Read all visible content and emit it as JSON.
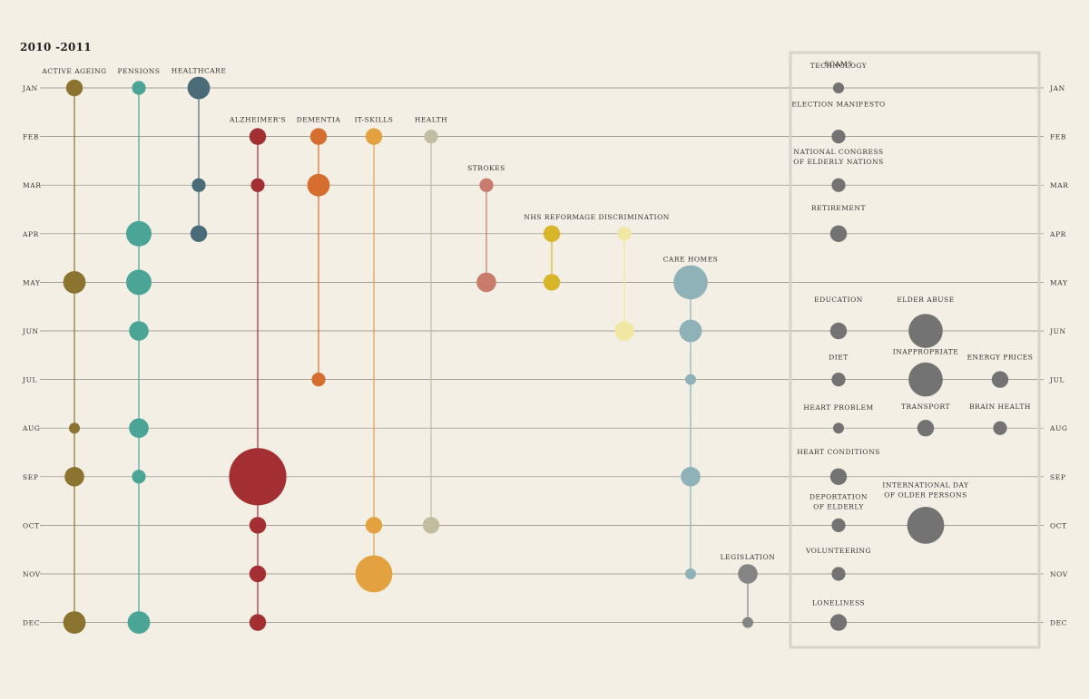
{
  "header": {
    "period": "2010 -2011"
  },
  "colors": {
    "background": "#f3efe4",
    "gridline": "#8a877f",
    "box": "#d6d3ca",
    "active_ageing": "#8b7430",
    "pensions": "#4aa597",
    "healthcare": "#4a6b78",
    "alzheimers": "#a32f33",
    "dementia": "#d56e2f",
    "it_skills": "#e3a23f",
    "health": "#c0bda1",
    "strokes": "#c97b6c",
    "nhs_reform": "#d7b62a",
    "age_discrimination": "#f0e7a2",
    "care_homes": "#8fb1b8",
    "legislation": "#858585",
    "other_topics": "#737373"
  },
  "chart_data": {
    "type": "scatter",
    "title": "2010 -2011",
    "months": [
      "JAN",
      "FEB",
      "MAR",
      "APR",
      "MAY",
      "JUN",
      "JUL",
      "AUG",
      "SEP",
      "OCT",
      "NOV",
      "DEC"
    ],
    "size_scale": "relative bubble size (1 = smallest)",
    "topics": [
      {
        "label": "ACTIVE AGEING",
        "color": "#8b7430",
        "points": [
          {
            "month": "JAN",
            "size": 3
          },
          {
            "month": "MAY",
            "size": 5
          },
          {
            "month": "AUG",
            "size": 1
          },
          {
            "month": "SEP",
            "size": 4
          },
          {
            "month": "DEC",
            "size": 5
          }
        ]
      },
      {
        "label": "PENSIONS",
        "color": "#4aa597",
        "points": [
          {
            "month": "JAN",
            "size": 2
          },
          {
            "month": "APR",
            "size": 6
          },
          {
            "month": "MAY",
            "size": 6
          },
          {
            "month": "JUN",
            "size": 4
          },
          {
            "month": "AUG",
            "size": 4
          },
          {
            "month": "SEP",
            "size": 2
          },
          {
            "month": "DEC",
            "size": 5
          }
        ]
      },
      {
        "label": "HEALTHCARE",
        "color": "#4a6b78",
        "points": [
          {
            "month": "JAN",
            "size": 5
          },
          {
            "month": "MAR",
            "size": 2
          },
          {
            "month": "APR",
            "size": 3
          }
        ]
      },
      {
        "label": "ALZHEIMER'S",
        "color": "#a32f33",
        "points": [
          {
            "month": "FEB",
            "size": 3
          },
          {
            "month": "MAR",
            "size": 2
          },
          {
            "month": "SEP",
            "size": 17
          },
          {
            "month": "OCT",
            "size": 3
          },
          {
            "month": "NOV",
            "size": 3
          },
          {
            "month": "DEC",
            "size": 3
          }
        ]
      },
      {
        "label": "DEMENTIA",
        "color": "#d56e2f",
        "points": [
          {
            "month": "FEB",
            "size": 3
          },
          {
            "month": "MAR",
            "size": 5
          },
          {
            "month": "JUL",
            "size": 2
          }
        ]
      },
      {
        "label": "IT-SKILLS",
        "color": "#e3a23f",
        "points": [
          {
            "month": "FEB",
            "size": 3
          },
          {
            "month": "OCT",
            "size": 3
          },
          {
            "month": "NOV",
            "size": 10
          }
        ]
      },
      {
        "label": "HEALTH",
        "color": "#c0bda1",
        "points": [
          {
            "month": "FEB",
            "size": 2
          },
          {
            "month": "OCT",
            "size": 3
          }
        ]
      },
      {
        "label": "STROKES",
        "color": "#c97b6c",
        "points": [
          {
            "month": "MAR",
            "size": 2
          },
          {
            "month": "MAY",
            "size": 4
          }
        ]
      },
      {
        "label": "NHS REFORM",
        "color": "#d7b62a",
        "points": [
          {
            "month": "APR",
            "size": 3
          },
          {
            "month": "MAY",
            "size": 3
          }
        ]
      },
      {
        "label": "AGE DISCRIMINATION",
        "color": "#f0e7a2",
        "points": [
          {
            "month": "APR",
            "size": 2
          },
          {
            "month": "JUN",
            "size": 4
          }
        ]
      },
      {
        "label": "CARE HOMES",
        "color": "#8fb1b8",
        "points": [
          {
            "month": "MAY",
            "size": 9
          },
          {
            "month": "JUN",
            "size": 5
          },
          {
            "month": "JUL",
            "size": 1
          },
          {
            "month": "SEP",
            "size": 4
          },
          {
            "month": "NOV",
            "size": 1
          }
        ]
      },
      {
        "label": "LEGISLATION",
        "color": "#858585",
        "points": [
          {
            "month": "NOV",
            "size": 4
          },
          {
            "month": "DEC",
            "size": 1
          }
        ]
      }
    ],
    "single_topics": [
      {
        "label": "SCAMS",
        "month": "JAN",
        "size": 1
      },
      {
        "label": "TECHNOLOGY",
        "month": "JAN",
        "size": 1
      },
      {
        "label": "ELECTION MANIFESTO",
        "month": "FEB",
        "size": 2
      },
      {
        "label": "NATIONAL CONGRESS",
        "label2": "OF ELDERLY NATIONS",
        "month": "MAR",
        "size": 2
      },
      {
        "label": "RETIREMENT",
        "month": "APR",
        "size": 3
      },
      {
        "label": "EDUCATION",
        "month": "JUN",
        "size": 3
      },
      {
        "label": "ELDER ABUSE",
        "month": "JUN",
        "size": 9
      },
      {
        "label": "DIET",
        "month": "JUL",
        "size": 2
      },
      {
        "label": "INAPPROPRIATE",
        "month": "JUL",
        "size": 9
      },
      {
        "label": "ENERGY PRICES",
        "month": "JUL",
        "size": 3
      },
      {
        "label": "HEART PROBLEM",
        "month": "AUG",
        "size": 1
      },
      {
        "label": "TRANSPORT",
        "month": "AUG",
        "size": 3
      },
      {
        "label": "BRAIN HEALTH",
        "month": "AUG",
        "size": 2
      },
      {
        "label": "HEART CONDITIONS",
        "month": "SEP",
        "size": 3
      },
      {
        "label": "DEPORTATION",
        "label2": "OF ELDERLY",
        "month": "OCT",
        "size": 2
      },
      {
        "label": "INTERNATIONAL DAY",
        "label2": "OF OLDER PERSONS",
        "month": "OCT",
        "size": 10
      },
      {
        "label": "VOLUNTEERING",
        "month": "NOV",
        "size": 2
      },
      {
        "label": "LONELINESS",
        "month": "DEC",
        "size": 3
      }
    ]
  }
}
